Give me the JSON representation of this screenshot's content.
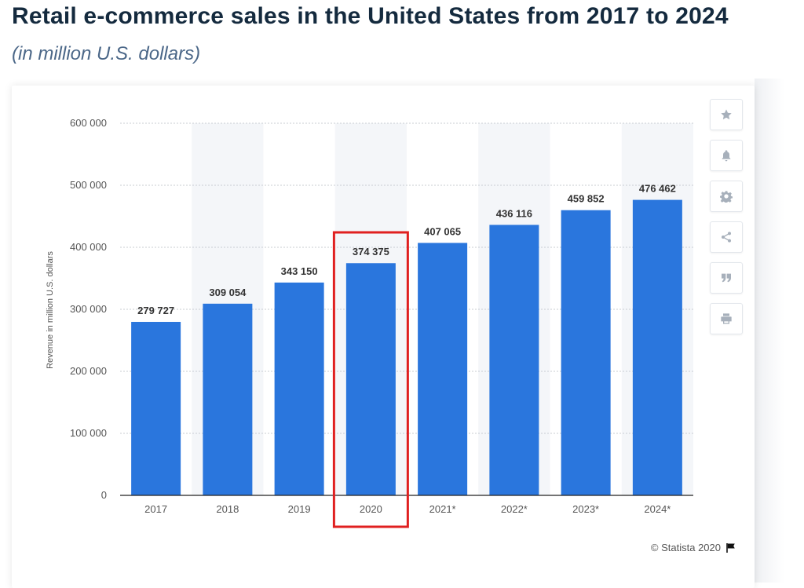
{
  "header": {
    "title": "Retail e-commerce sales in the United States from 2017 to 2024",
    "subtitle": "(in million U.S. dollars)"
  },
  "toolbar": {
    "buttons": [
      "star-icon",
      "bell-icon",
      "gear-icon",
      "share-icon",
      "quote-icon",
      "print-icon"
    ]
  },
  "footer": {
    "credit": "© Statista 2020"
  },
  "colors": {
    "bar": "#2a76dd",
    "highlight_box": "#e02020",
    "column_band": "#f4f6f9",
    "grid": "#c8ccd2"
  },
  "chart_data": {
    "type": "bar",
    "categories": [
      "2017",
      "2018",
      "2019",
      "2020",
      "2021*",
      "2022*",
      "2023*",
      "2024*"
    ],
    "values": [
      279727,
      309054,
      343150,
      374375,
      407065,
      436116,
      459852,
      476462
    ],
    "value_labels": [
      "279 727",
      "309 054",
      "343 150",
      "374 375",
      "407 065",
      "436 116",
      "459 852",
      "476 462"
    ],
    "y_ticks": [
      0,
      100000,
      200000,
      300000,
      400000,
      500000,
      600000
    ],
    "y_tick_labels": [
      "0",
      "100 000",
      "200 000",
      "300 000",
      "400 000",
      "500 000",
      "600 000"
    ],
    "ylabel": "Revenue in million U.S. dollars",
    "ylim": [
      0,
      600000
    ],
    "grid": true,
    "highlighted_category": "2020"
  }
}
